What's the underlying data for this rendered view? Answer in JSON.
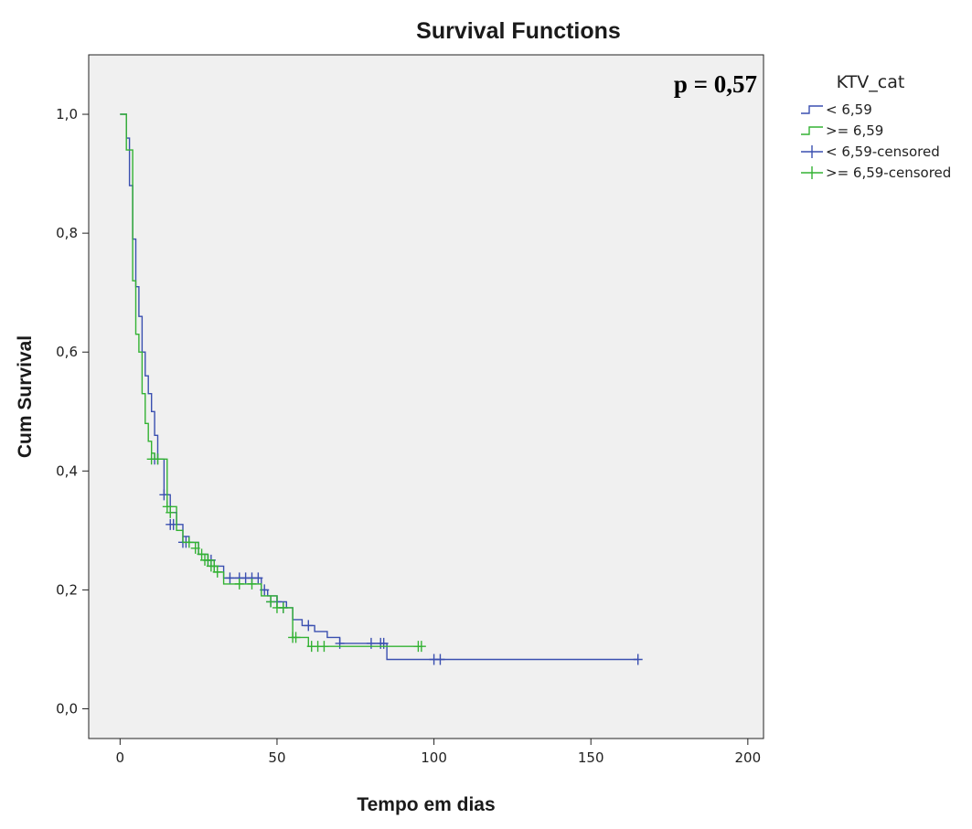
{
  "colors": {
    "panel": "#f0f0f0",
    "series_below": "#3a4fb0",
    "series_above": "#33b233"
  },
  "chart_data": {
    "type": "line",
    "subtype": "kaplan-meier step function",
    "title": "Survival Functions",
    "xlabel": "Tempo em dias",
    "ylabel": "Cum Survival",
    "xlim": [
      -10,
      205
    ],
    "ylim": [
      -0.05,
      1.1
    ],
    "x_ticks": [
      0,
      50,
      100,
      150,
      200
    ],
    "x_tick_labels": [
      "0",
      "50",
      "100",
      "150",
      "200"
    ],
    "y_ticks": [
      0,
      0.2,
      0.4,
      0.6,
      0.8,
      1.0
    ],
    "y_tick_labels": [
      "0,0",
      "0,2",
      "0,4",
      "0,6",
      "0,8",
      "1,0"
    ],
    "grid": false,
    "annotation": "p = 0,57",
    "legend": {
      "title": "KTV_cat",
      "placement": "right",
      "entries": [
        "< 6,59",
        ">= 6,59",
        "< 6,59-censored",
        ">= 6,59-censored"
      ]
    },
    "series": [
      {
        "name": "< 6,59",
        "color": "#3a4fb0",
        "x": [
          0,
          2,
          3,
          4,
          5,
          6,
          7,
          8,
          9,
          10,
          11,
          12,
          14,
          16,
          18,
          20,
          22,
          25,
          28,
          30,
          33,
          45,
          47,
          50,
          53,
          55,
          58,
          62,
          66,
          70,
          85,
          165
        ],
        "y": [
          1.0,
          0.96,
          0.88,
          0.79,
          0.71,
          0.66,
          0.6,
          0.56,
          0.53,
          0.5,
          0.46,
          0.42,
          0.36,
          0.33,
          0.31,
          0.29,
          0.28,
          0.26,
          0.25,
          0.24,
          0.22,
          0.2,
          0.19,
          0.18,
          0.17,
          0.15,
          0.14,
          0.13,
          0.12,
          0.11,
          0.083,
          0.083
        ],
        "censored_x": [
          11,
          12,
          14,
          16,
          17,
          20,
          21,
          28,
          29,
          30,
          35,
          38,
          40,
          42,
          44,
          46,
          48,
          50,
          52,
          60,
          70,
          80,
          83,
          84,
          100,
          102,
          165
        ],
        "censored_y": [
          0.42,
          0.42,
          0.36,
          0.31,
          0.31,
          0.28,
          0.28,
          0.25,
          0.25,
          0.24,
          0.22,
          0.22,
          0.22,
          0.22,
          0.22,
          0.2,
          0.18,
          0.18,
          0.17,
          0.14,
          0.11,
          0.11,
          0.11,
          0.11,
          0.083,
          0.083,
          0.083
        ]
      },
      {
        "name": ">= 6,59",
        "color": "#33b233",
        "x": [
          0,
          2,
          4,
          5,
          6,
          7,
          8,
          9,
          10,
          11,
          12,
          15,
          18,
          20,
          25,
          28,
          30,
          33,
          40,
          45,
          50,
          55,
          60,
          96
        ],
        "y": [
          1.0,
          0.94,
          0.72,
          0.63,
          0.6,
          0.53,
          0.48,
          0.45,
          0.43,
          0.42,
          0.42,
          0.34,
          0.3,
          0.28,
          0.26,
          0.25,
          0.23,
          0.21,
          0.21,
          0.19,
          0.17,
          0.12,
          0.105,
          0.105
        ],
        "censored_x": [
          10,
          12,
          15,
          16,
          22,
          24,
          26,
          27,
          28,
          29,
          30,
          31,
          38,
          42,
          48,
          50,
          52,
          55,
          56,
          61,
          63,
          65,
          95,
          96
        ],
        "censored_y": [
          0.42,
          0.42,
          0.34,
          0.33,
          0.28,
          0.27,
          0.26,
          0.25,
          0.25,
          0.24,
          0.24,
          0.23,
          0.21,
          0.21,
          0.18,
          0.17,
          0.17,
          0.12,
          0.12,
          0.105,
          0.105,
          0.105,
          0.105,
          0.105
        ]
      }
    ]
  }
}
